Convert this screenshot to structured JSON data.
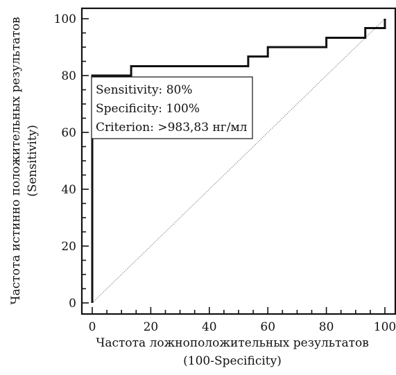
{
  "chart_data": {
    "type": "line",
    "xlabel": [
      "Частота ложноположительных результатов",
      "(100-Specificity)"
    ],
    "ylabel": [
      "Частота истинно положительных результатов",
      "(Sensitivity)"
    ],
    "xlim": [
      0,
      100
    ],
    "ylim": [
      0,
      100
    ],
    "x_ticks": [
      "0",
      "20",
      "40",
      "60",
      "80",
      "100"
    ],
    "y_ticks": [
      "0",
      "20",
      "40",
      "60",
      "80",
      "100"
    ],
    "grid": false,
    "series": [
      {
        "style": "step",
        "color": "#111111",
        "points": [
          [
            0,
            0
          ],
          [
            0,
            80
          ],
          [
            13.3,
            80
          ],
          [
            13.3,
            83.3
          ],
          [
            53.3,
            83.3
          ],
          [
            53.3,
            86.7
          ],
          [
            60,
            86.7
          ],
          [
            60,
            90
          ],
          [
            80,
            90
          ],
          [
            80,
            93.3
          ],
          [
            93.3,
            93.3
          ],
          [
            93.3,
            96.7
          ],
          [
            100,
            96.7
          ],
          [
            100,
            100
          ]
        ]
      },
      {
        "style": "dotted-diagonal",
        "color": "#555555",
        "points": [
          [
            0,
            0
          ],
          [
            100,
            100
          ]
        ]
      }
    ],
    "annotation": {
      "lines": [
        "Sensitivity: 80%",
        "Specificity: 100%",
        "Criterion: >983,83 нг/мл"
      ]
    }
  }
}
